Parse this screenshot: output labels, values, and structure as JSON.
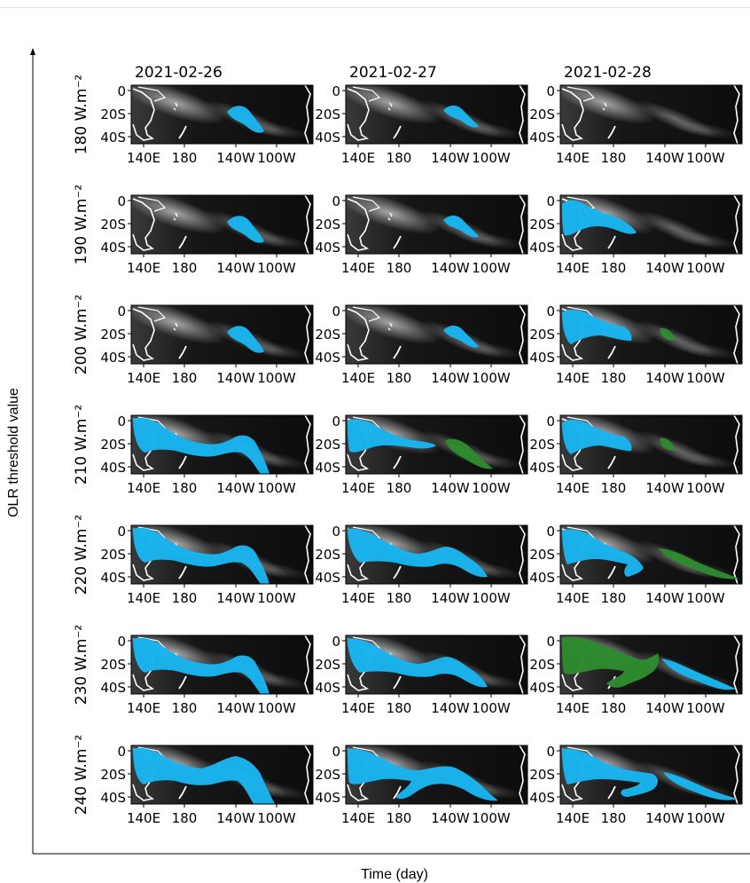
{
  "chart_data": {
    "type": "map-grid",
    "title": "",
    "xlabel": "Time (day)",
    "ylabel": "OLR threshold value",
    "columns": [
      "2021-02-26",
      "2021-02-27",
      "2021-02-28"
    ],
    "rows": [
      "180 W.m⁻²",
      "190 W.m⁻²",
      "200 W.m⁻²",
      "210 W.m⁻²",
      "220 W.m⁻²",
      "230 W.m⁻²",
      "240 W.m⁻²"
    ],
    "thresholds": [
      180,
      190,
      200,
      210,
      220,
      230,
      240
    ],
    "lon_ticks": [
      "140E",
      "180",
      "140W",
      "100W"
    ],
    "lat_ticks": [
      "0",
      "20S",
      "40S"
    ],
    "colors": {
      "tracked_system": "#1ab2ee",
      "secondary_system": "#2e8b2e",
      "background": "#0a0a0a",
      "coastline": "#ffffff"
    },
    "panels": [
      [
        "blob-small",
        "blob-thin",
        "none"
      ],
      [
        "blob-small",
        "blob-thin",
        "west-band"
      ],
      [
        "blob-small",
        "blob-thin",
        "west-band+green-small"
      ],
      [
        "wide-band",
        "west-band+green",
        "west-band+green-small"
      ],
      [
        "wide-band",
        "wide-band2",
        "west-band+green-long"
      ],
      [
        "wide-band",
        "wide-band2",
        "green-west+blue-east"
      ],
      [
        "wide-band-full",
        "wide-band2-full",
        "wide-band3"
      ]
    ]
  }
}
